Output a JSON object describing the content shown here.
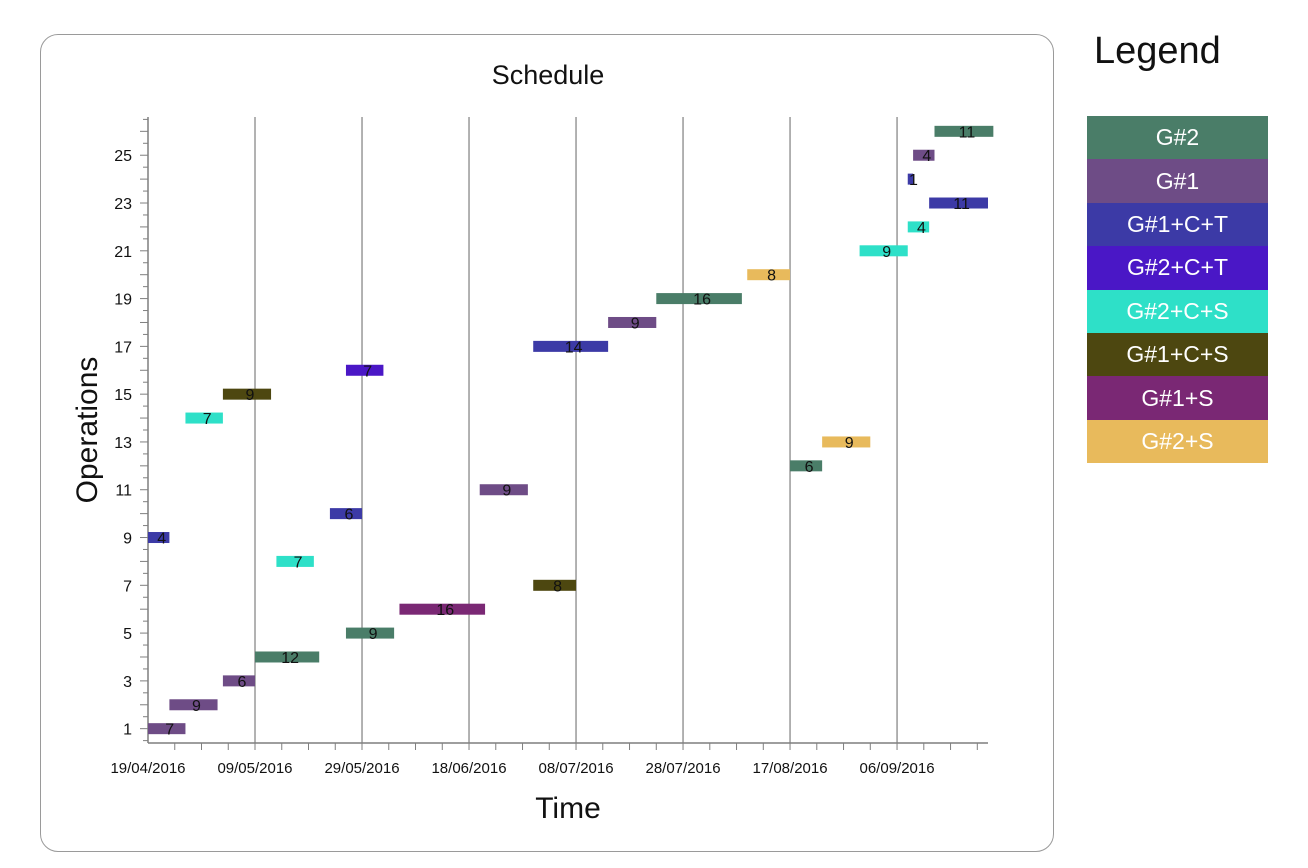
{
  "chart_data": {
    "type": "bar",
    "title": "Schedule",
    "xlabel": "Time",
    "ylabel": "Operations",
    "x_ticks": [
      "19/04/2016",
      "09/05/2016",
      "29/05/2016",
      "18/06/2016",
      "08/07/2016",
      "28/07/2016",
      "17/08/2016",
      "06/09/2016"
    ],
    "x_range": [
      "2016-04-19",
      "2016-09-23"
    ],
    "y_ticks": [
      1,
      3,
      5,
      7,
      9,
      11,
      13,
      15,
      17,
      19,
      21,
      23,
      25
    ],
    "ylim": [
      0.4,
      26.6
    ],
    "grid": "vertical lines at x tick dates",
    "legend": {
      "title": "Legend",
      "placement": "right",
      "items": [
        {
          "label": "G#2",
          "color": "#4a7d68"
        },
        {
          "label": "G#1",
          "color": "#6e4c86"
        },
        {
          "label": "G#1+C+T",
          "color": "#3c3aa6"
        },
        {
          "label": "G#2+C+T",
          "color": "#4a17c6"
        },
        {
          "label": "G#2+C+S",
          "color": "#2ee0c8"
        },
        {
          "label": "G#1+C+S",
          "color": "#4d4710"
        },
        {
          "label": "G#1+S",
          "color": "#7a2874"
        },
        {
          "label": "G#2+S",
          "color": "#e8ba5c"
        }
      ]
    },
    "tasks": [
      {
        "operation": 1,
        "start": "2016-04-19",
        "end": "2016-04-26",
        "duration": "7",
        "group": "G#1"
      },
      {
        "operation": 2,
        "start": "2016-04-23",
        "end": "2016-05-02",
        "duration": "9",
        "group": "G#1"
      },
      {
        "operation": 3,
        "start": "2016-05-03",
        "end": "2016-05-09",
        "duration": "6",
        "group": "G#1"
      },
      {
        "operation": 4,
        "start": "2016-05-09",
        "end": "2016-05-21",
        "duration": "12",
        "group": "G#2"
      },
      {
        "operation": 5,
        "start": "2016-05-26",
        "end": "2016-06-04",
        "duration": "9",
        "group": "G#2"
      },
      {
        "operation": 6,
        "start": "2016-06-05",
        "end": "2016-06-21",
        "duration": "16",
        "group": "G#1+S"
      },
      {
        "operation": 7,
        "start": "2016-06-30",
        "end": "2016-07-08",
        "duration": "8",
        "group": "G#1+C+S"
      },
      {
        "operation": 8,
        "start": "2016-05-13",
        "end": "2016-05-20",
        "duration": "7",
        "group": "G#2+C+S"
      },
      {
        "operation": 9,
        "start": "2016-04-19",
        "end": "2016-04-23",
        "duration": "4",
        "group": "G#1+C+T"
      },
      {
        "operation": 10,
        "start": "2016-05-23",
        "end": "2016-05-29",
        "duration": "6",
        "group": "G#1+C+T"
      },
      {
        "operation": 11,
        "start": "2016-06-20",
        "end": "2016-06-29",
        "duration": "9",
        "group": "G#1"
      },
      {
        "operation": 12,
        "start": "2016-08-17",
        "end": "2016-08-23",
        "duration": "6",
        "group": "G#2"
      },
      {
        "operation": 13,
        "start": "2016-08-23",
        "end": "2016-09-01",
        "duration": "9",
        "group": "G#2+S"
      },
      {
        "operation": 14,
        "start": "2016-04-26",
        "end": "2016-05-03",
        "duration": "7",
        "group": "G#2+C+S"
      },
      {
        "operation": 15,
        "start": "2016-05-03",
        "end": "2016-05-12",
        "duration": "9",
        "group": "G#1+C+S"
      },
      {
        "operation": 16,
        "start": "2016-05-26",
        "end": "2016-06-02",
        "duration": "7",
        "group": "G#2+C+T"
      },
      {
        "operation": 17,
        "start": "2016-06-30",
        "end": "2016-07-14",
        "duration": "14",
        "group": "G#1+C+T"
      },
      {
        "operation": 18,
        "start": "2016-07-14",
        "end": "2016-07-23",
        "duration": "9",
        "group": "G#1"
      },
      {
        "operation": 19,
        "start": "2016-07-23",
        "end": "2016-08-08",
        "duration": "16",
        "group": "G#2"
      },
      {
        "operation": 20,
        "start": "2016-08-09",
        "end": "2016-08-17",
        "duration": "8",
        "group": "G#2+S"
      },
      {
        "operation": 21,
        "start": "2016-08-30",
        "end": "2016-09-08",
        "duration": "9",
        "group": "G#2+C+S"
      },
      {
        "operation": 22,
        "start": "2016-09-08",
        "end": "2016-09-12",
        "duration": "4",
        "group": "G#2+C+S"
      },
      {
        "operation": 23,
        "start": "2016-09-12",
        "end": "2016-09-23",
        "duration": "11",
        "group": "G#1+C+T"
      },
      {
        "operation": 24,
        "start": "2016-09-08",
        "end": "2016-09-09",
        "duration": "1",
        "group": "G#1+C+T"
      },
      {
        "operation": 25,
        "start": "2016-09-09",
        "end": "2016-09-13",
        "duration": "4",
        "group": "G#1"
      },
      {
        "operation": 26,
        "start": "2016-09-13",
        "end": "2016-09-24",
        "duration": "11",
        "group": "G#2"
      }
    ]
  }
}
